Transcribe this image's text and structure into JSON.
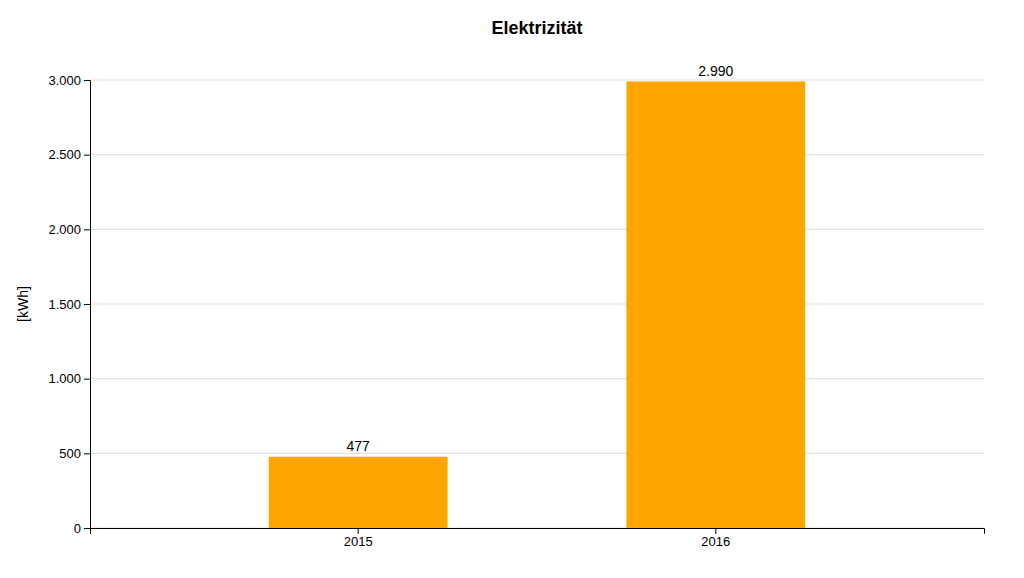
{
  "chart_data": {
    "type": "bar",
    "title": "Elektrizität",
    "ylabel": "[kWh]",
    "categories": [
      "2015",
      "2016"
    ],
    "values": [
      477,
      2990
    ],
    "value_labels": [
      "477",
      "2.990"
    ],
    "data_labels": true,
    "color": "#FFA500",
    "ylim": [
      0,
      3000
    ],
    "yticks": [
      0,
      500,
      {
        "value": 1000,
        "label": "1.000"
      },
      {
        "value": 1500,
        "label": "1.500"
      },
      {
        "value": 2000,
        "label": "2.000"
      },
      {
        "value": 2500,
        "label": "2.500"
      },
      {
        "value": 3000,
        "label": "3.000"
      }
    ],
    "grid": true
  }
}
